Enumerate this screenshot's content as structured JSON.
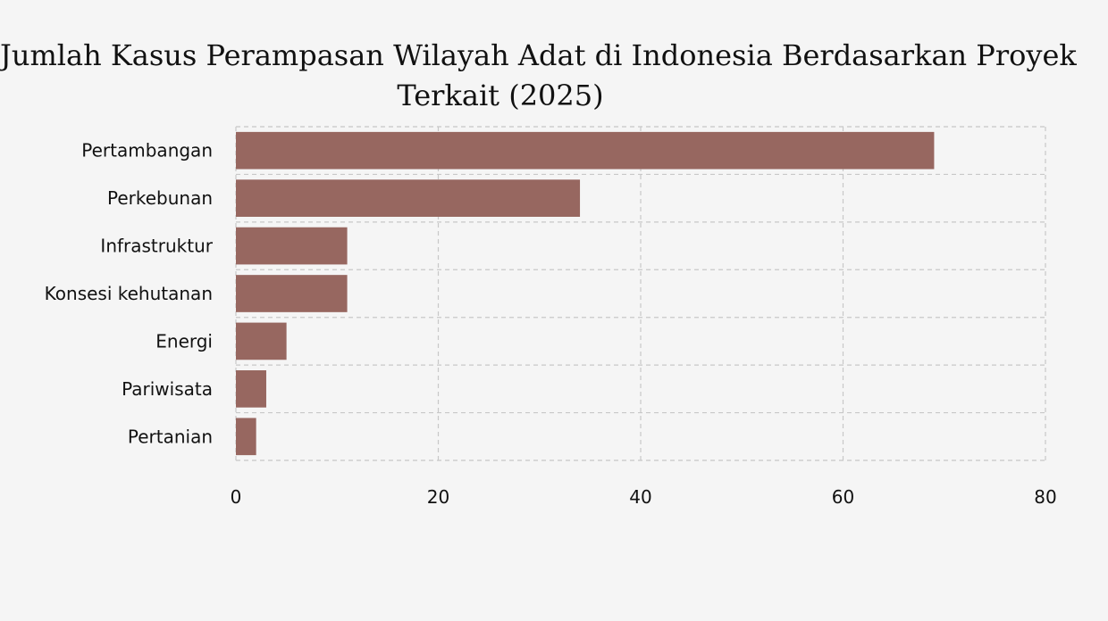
{
  "chart_data": {
    "type": "bar",
    "orientation": "horizontal",
    "title_lines": [
      "Jumlah Kasus Perampasan Wilayah Adat di Indonesia Berdasarkan Proyek",
      "Terkait (2025)"
    ],
    "categories": [
      "Pertambangan",
      "Perkebunan",
      "Infrastruktur",
      "Konsesi kehutanan",
      "Energi",
      "Pariwisata",
      "Pertanian"
    ],
    "values": [
      69,
      34,
      11,
      11,
      5,
      3,
      2
    ],
    "xlim": [
      0,
      80
    ],
    "xticks": [
      0,
      20,
      40,
      60,
      80
    ],
    "grid": true,
    "bar_color": "#976760",
    "grid_color": "#c8c8c8",
    "background": "#f5f5f5"
  }
}
